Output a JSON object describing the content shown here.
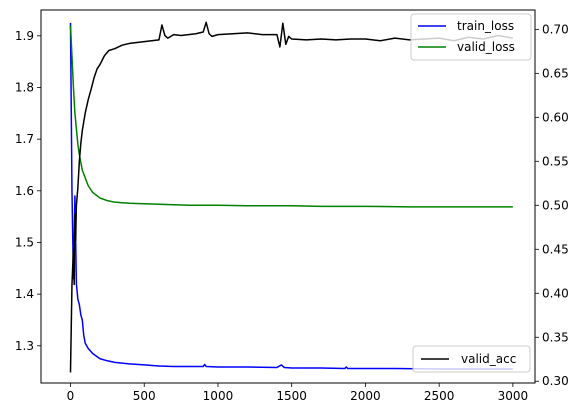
{
  "chart_data": {
    "type": "line",
    "xlim": [
      -200,
      3150
    ],
    "ylim_left": [
      1.228,
      1.95
    ],
    "ylim_right": [
      0.298,
      0.722
    ],
    "x_ticks": [
      0,
      500,
      1000,
      1500,
      2000,
      2500,
      3000
    ],
    "y_ticks_left": [
      1.3,
      1.4,
      1.5,
      1.6,
      1.7,
      1.8,
      1.9
    ],
    "y_ticks_right": [
      0.3,
      0.35,
      0.4,
      0.45,
      0.5,
      0.55,
      0.6,
      0.65,
      0.7
    ],
    "grid": false,
    "series": [
      {
        "name": "train_loss",
        "axis": "left",
        "color": "#0000ff",
        "x": [
          0,
          10,
          20,
          30,
          40,
          50,
          60,
          70,
          80,
          90,
          100,
          120,
          150,
          200,
          250,
          300,
          400,
          500,
          600,
          700,
          800,
          900,
          910,
          920,
          1000,
          1200,
          1400,
          1430,
          1450,
          1500,
          1700,
          1860,
          1870,
          1880,
          2000,
          2200,
          2500,
          2800,
          3000
        ],
        "y": [
          1.925,
          1.6,
          1.43,
          1.59,
          1.42,
          1.39,
          1.38,
          1.36,
          1.35,
          1.32,
          1.305,
          1.295,
          1.285,
          1.275,
          1.271,
          1.268,
          1.265,
          1.263,
          1.261,
          1.26,
          1.26,
          1.26,
          1.264,
          1.26,
          1.259,
          1.259,
          1.258,
          1.263,
          1.258,
          1.257,
          1.257,
          1.256,
          1.259,
          1.256,
          1.256,
          1.256,
          1.255,
          1.255,
          1.255
        ]
      },
      {
        "name": "valid_loss",
        "axis": "left",
        "color": "#008000",
        "x": [
          0,
          10,
          20,
          30,
          40,
          50,
          60,
          70,
          80,
          100,
          120,
          150,
          200,
          250,
          300,
          350,
          400,
          500,
          600,
          700,
          800,
          1000,
          1200,
          1400,
          1500,
          1700,
          2000,
          2300,
          2500,
          2800,
          3000
        ],
        "y": [
          1.92,
          1.86,
          1.8,
          1.75,
          1.72,
          1.69,
          1.67,
          1.655,
          1.64,
          1.625,
          1.61,
          1.597,
          1.586,
          1.581,
          1.578,
          1.577,
          1.576,
          1.575,
          1.574,
          1.573,
          1.572,
          1.572,
          1.571,
          1.571,
          1.571,
          1.57,
          1.57,
          1.569,
          1.569,
          1.569,
          1.569
        ]
      },
      {
        "name": "valid_acc",
        "axis": "right",
        "color": "#000000",
        "x": [
          0,
          5,
          10,
          15,
          20,
          25,
          30,
          35,
          40,
          50,
          60,
          70,
          80,
          90,
          100,
          120,
          140,
          160,
          180,
          200,
          230,
          260,
          300,
          350,
          400,
          450,
          500,
          550,
          600,
          620,
          640,
          660,
          700,
          750,
          800,
          850,
          900,
          920,
          940,
          960,
          1000,
          1100,
          1200,
          1300,
          1400,
          1420,
          1440,
          1460,
          1480,
          1500,
          1600,
          1700,
          1800,
          1900,
          2000,
          2100,
          2200,
          2300,
          2400,
          2500,
          2600,
          2700,
          2800,
          2900,
          3000
        ],
        "y": [
          0.31,
          0.36,
          0.41,
          0.43,
          0.45,
          0.41,
          0.49,
          0.46,
          0.5,
          0.52,
          0.55,
          0.57,
          0.585,
          0.595,
          0.605,
          0.62,
          0.632,
          0.645,
          0.655,
          0.66,
          0.67,
          0.676,
          0.678,
          0.682,
          0.684,
          0.685,
          0.686,
          0.687,
          0.688,
          0.705,
          0.693,
          0.69,
          0.694,
          0.693,
          0.694,
          0.695,
          0.697,
          0.708,
          0.695,
          0.692,
          0.694,
          0.695,
          0.696,
          0.694,
          0.694,
          0.68,
          0.707,
          0.683,
          0.692,
          0.689,
          0.688,
          0.689,
          0.688,
          0.689,
          0.689,
          0.687,
          0.69,
          0.688,
          0.689,
          0.69,
          0.687,
          0.691,
          0.689,
          0.693,
          0.69
        ]
      }
    ],
    "legends": [
      {
        "placement": "top-right",
        "entries": [
          "train_loss",
          "valid_loss"
        ]
      },
      {
        "placement": "bottom-right",
        "entries": [
          "valid_acc"
        ]
      }
    ]
  }
}
